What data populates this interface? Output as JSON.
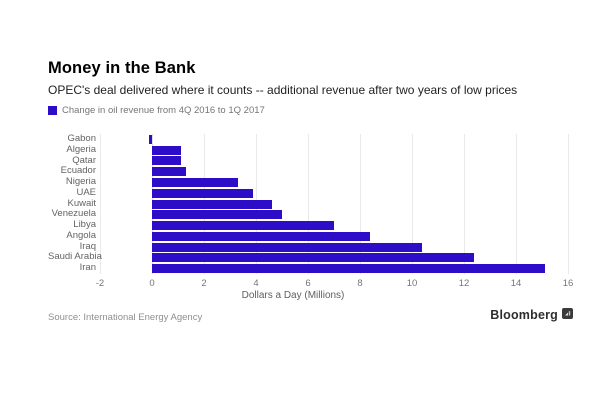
{
  "header": {
    "title": "Money in the Bank",
    "subtitle": "OPEC's deal delivered where it counts -- additional revenue after two years of low prices"
  },
  "legend": {
    "label": "Change in oil revenue from 4Q 2016 to 1Q 2017",
    "swatch_color": "#2e0dc8"
  },
  "chart_data": {
    "type": "bar",
    "orientation": "horizontal",
    "title": "Money in the Bank",
    "categories": [
      "Gabon",
      "Algeria",
      "Qatar",
      "Ecuador",
      "Nigeria",
      "UAE",
      "Kuwait",
      "Venezuela",
      "Libya",
      "Angola",
      "Iraq",
      "Saudi Arabia",
      "Iran"
    ],
    "values": [
      -0.1,
      1.1,
      1.1,
      1.3,
      3.3,
      3.9,
      4.6,
      5.0,
      7.0,
      8.4,
      10.4,
      12.4,
      15.1
    ],
    "xlabel": "Dollars a Day (Millions)",
    "ylabel": "",
    "xlim": [
      -2,
      16
    ],
    "xticks": [
      -2,
      0,
      2,
      4,
      6,
      8,
      10,
      12,
      14,
      16
    ],
    "bar_color": "#2e0dc8",
    "grid": true,
    "legend_position": "top-left",
    "legend_entries": [
      "Change in oil revenue from 4Q 2016 to 1Q 2017"
    ]
  },
  "footer": {
    "source": "Source: International Energy Agency",
    "brand": "Bloomberg"
  }
}
